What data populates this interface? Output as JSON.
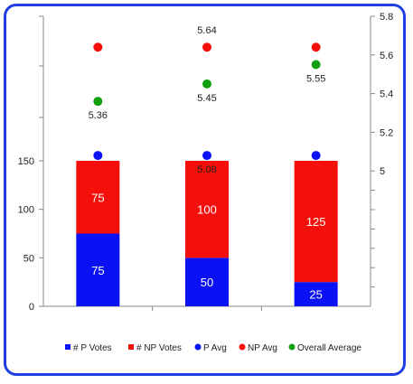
{
  "chart_data": {
    "type": "bar",
    "categories": [
      "",
      "",
      ""
    ],
    "stacked_series": [
      {
        "name": "# P Votes",
        "values": [
          75,
          50,
          25
        ],
        "color": "#0a12f5",
        "axis": "left"
      },
      {
        "name": "# NP Votes",
        "values": [
          75,
          100,
          125
        ],
        "color": "#f50f0a",
        "axis": "left"
      }
    ],
    "point_series": [
      {
        "name": "P Avg",
        "values": [
          5.08,
          5.08,
          5.08
        ],
        "color": "#0a12f5",
        "axis": "right",
        "labels": [
          "",
          "5.08",
          ""
        ]
      },
      {
        "name": "NP Avg",
        "values": [
          5.64,
          5.64,
          5.64
        ],
        "color": "#f50f0a",
        "axis": "right",
        "labels": [
          "",
          "5.64",
          ""
        ]
      },
      {
        "name": "Overall Average",
        "values": [
          5.36,
          5.45,
          5.55
        ],
        "color": "#12a012",
        "axis": "right",
        "labels": [
          "5.36",
          "5.45",
          "5.55"
        ]
      }
    ],
    "left_axis": {
      "range": [
        0,
        150
      ],
      "ticks": [
        "0",
        "50",
        "100",
        "150"
      ]
    },
    "right_axis": {
      "range": [
        4.3,
        5.8
      ],
      "ticks": [
        "5",
        "5.2",
        "5.4",
        "5.6",
        "5.8"
      ]
    },
    "legend": {
      "position": "bottom",
      "entries": [
        "# P Votes",
        "# NP Votes",
        "P Avg",
        "NP Avg",
        "Overall Average"
      ]
    },
    "title": "",
    "xlabel": "",
    "ylabel": ""
  }
}
